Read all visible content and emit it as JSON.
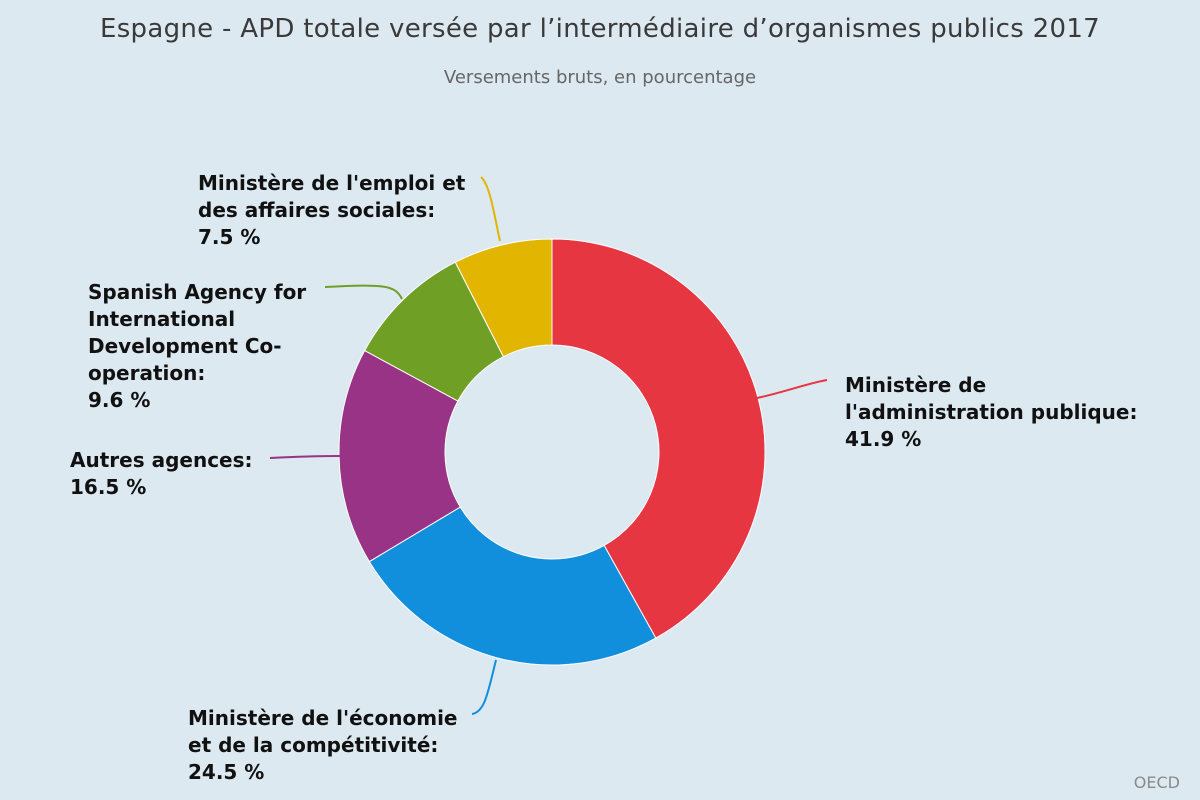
{
  "title": "Espagne - APD totale versée par l’intermédiaire d’organismes publics 2017",
  "subtitle": "Versements bruts, en pourcentage",
  "source": "OECD",
  "chart_data": {
    "type": "pie",
    "donut": true,
    "unit": "%",
    "slices": [
      {
        "name": "Ministère de l'administration publique",
        "label_lines": [
          "Ministère de",
          "l'administration publique:",
          "41.9 %"
        ],
        "value": 41.9,
        "color": "#e63642"
      },
      {
        "name": "Ministère de l'économie et de la compétitivité",
        "label_lines": [
          "Ministère de l'économie",
          "et de la compétitivité:",
          "24.5 %"
        ],
        "value": 24.5,
        "color": "#118fdc"
      },
      {
        "name": "Autres agences",
        "label_lines": [
          "Autres agences:",
          "16.5 %"
        ],
        "value": 16.5,
        "color": "#993385"
      },
      {
        "name": "Spanish Agency for International Development Co-operation",
        "label_lines": [
          "Spanish Agency for",
          "International",
          "Development Co-",
          "operation:",
          "9.6 %"
        ],
        "value": 9.6,
        "color": "#6f9f25"
      },
      {
        "name": "Ministère de l'emploi et des affaires sociales",
        "label_lines": [
          "Ministère de l'emploi et",
          "des affaires sociales:",
          "7.5 %"
        ],
        "value": 7.5,
        "color": "#e2b500"
      }
    ]
  }
}
